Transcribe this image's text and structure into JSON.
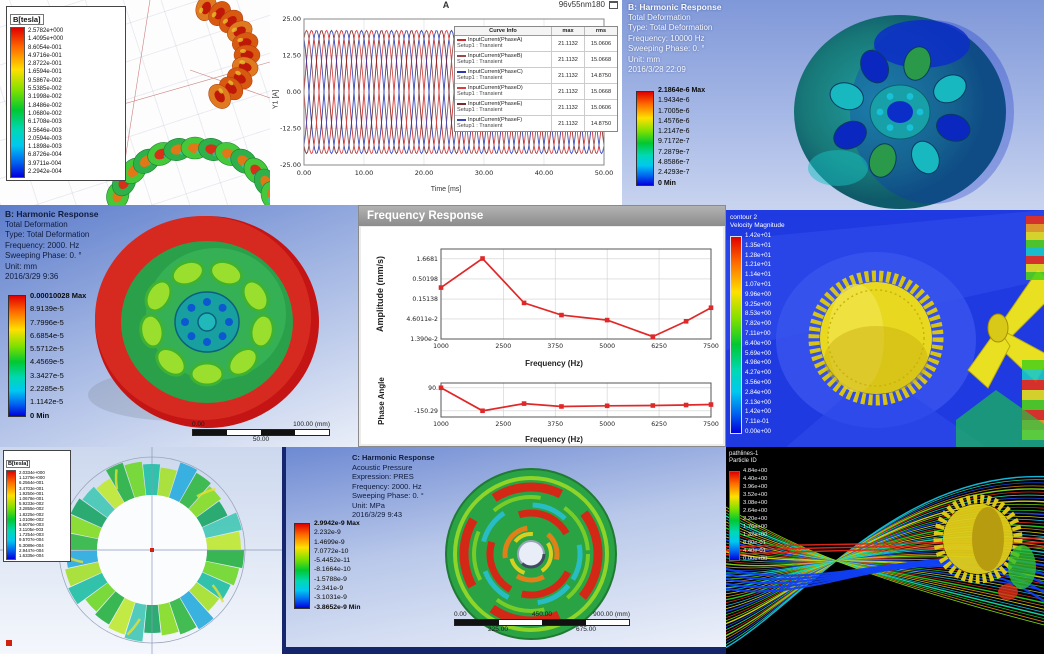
{
  "tl": {
    "legend_title": "B[tesla]",
    "legend_values": [
      "2.5782e+000",
      "1.4095e+000",
      "8.6054e-001",
      "4.9716e-001",
      "2.8722e-001",
      "1.6594e-001",
      "9.5867e-002",
      "5.5385e-002",
      "3.1998e-002",
      "1.8486e-002",
      "1.0680e-002",
      "6.1708e-003",
      "3.5646e-003",
      "2.0594e-003",
      "1.1898e-003",
      "6.8726e-004",
      "3.9711e-004",
      "2.2942e-004"
    ]
  },
  "tm": {
    "title": "A",
    "corner_label": "96v55nm180",
    "xlabel": "Time [ms]",
    "ylabel": "Y1 [A]",
    "table": {
      "header": [
        "Curve Info",
        "max",
        "rms"
      ],
      "rows": [
        {
          "name": "InputCurrent(PhaseA)",
          "setup": "Setup1 : Transient",
          "max": "21.1132",
          "rms": "15.0606",
          "color": "#cc2a2a"
        },
        {
          "name": "InputCurrent(PhaseB)",
          "setup": "Setup1 : Transient",
          "max": "21.1132",
          "rms": "15.0668",
          "color": "#9a4a4a"
        },
        {
          "name": "InputCurrent(PhaseC)",
          "setup": "Setup1 : Transient",
          "max": "21.1132",
          "rms": "14.8750",
          "color": "#2a3aa8"
        },
        {
          "name": "InputCurrent(PhaseD)",
          "setup": "Setup1 : Transient",
          "max": "21.1132",
          "rms": "15.0668",
          "color": "#d84040"
        },
        {
          "name": "InputCurrent(PhaseE)",
          "setup": "Setup1 : Transient",
          "max": "21.1132",
          "rms": "15.0606",
          "color": "#7a2a2a"
        },
        {
          "name": "InputCurrent(PhaseF)",
          "setup": "Setup1 : Transient",
          "max": "21.1132",
          "rms": "14.8750",
          "color": "#3a4ab8"
        }
      ]
    }
  },
  "tr": {
    "info_lines": [
      "B: Harmonic Response",
      "Total Deformation",
      "Type: Total Deformation",
      "Frequency: 10000 Hz",
      "Sweeping Phase: 0. °",
      "Unit: mm",
      "2016/3/28 22:09"
    ],
    "legend_values": [
      "2.1864e-6 Max",
      "1.9434e-6",
      "1.7005e-6",
      "1.4576e-6",
      "1.2147e-6",
      "9.7172e-7",
      "7.2879e-7",
      "4.8586e-7",
      "2.4293e-7",
      "0 Min"
    ]
  },
  "ml": {
    "info_lines": [
      "B: Harmonic Response",
      "Total Deformation",
      "Type: Total Deformation",
      "Frequency: 2000. Hz",
      "Sweeping Phase: 0. °",
      "Unit: mm",
      "2016/3/29 9:36"
    ],
    "legend_values": [
      "0.00010028 Max",
      "8.9139e-5",
      "7.7996e-5",
      "6.6854e-5",
      "5.5712e-5",
      "4.4569e-5",
      "3.3427e-5",
      "2.2285e-5",
      "1.1142e-5",
      "0 Min"
    ],
    "scale": {
      "left": "0.00",
      "right": "100.00 (mm)",
      "mid": "50.00"
    }
  },
  "mm": {
    "window_title": "Frequency Response",
    "amp_ylabel": "Amplitude (mm/s)",
    "phase_ylabel": "Phase Angle",
    "xlabel": "Frequency (Hz)"
  },
  "mr": {
    "legend_title_lines": [
      "contour 2",
      "Velocity Magnitude"
    ],
    "legend_values": [
      "1.42e+01",
      "1.35e+01",
      "1.28e+01",
      "1.21e+01",
      "1.14e+01",
      "1.07e+01",
      "9.96e+00",
      "9.25e+00",
      "8.53e+00",
      "7.82e+00",
      "7.11e+00",
      "6.40e+00",
      "5.69e+00",
      "4.98e+00",
      "4.27e+00",
      "3.56e+00",
      "2.84e+00",
      "2.13e+00",
      "1.42e+00",
      "7.11e-01",
      "0.00e+00"
    ]
  },
  "bl": {
    "legend_title": "B[tesla]",
    "legend_values": [
      "2.0334e+000",
      "1.1279e+000",
      "6.2564e-001",
      "3.4703e-001",
      "1.9250e-001",
      "1.0678e-001",
      "5.9233e-002",
      "3.2855e-002",
      "1.8225e-002",
      "1.0109e-002",
      "5.6076e-003",
      "3.1105e-003",
      "1.7254e-003",
      "9.5707e-004",
      "5.3089e-004",
      "2.9447e-004",
      "1.6335e-004"
    ]
  },
  "bm": {
    "info_lines": [
      "C: Harmonic Response",
      "Acoustic Pressure",
      "Expression: PRES",
      "Frequency: 2000. Hz",
      "Sweeping Phase: 0. °",
      "Unit: MPa",
      "2016/3/29 9:43"
    ],
    "legend_values": [
      "2.9942e-9 Max",
      "2.232e-9",
      "1.4699e-9",
      "7.0772e-10",
      "-5.4452e-11",
      "-8.1664e-10",
      "-1.5788e-9",
      "-2.341e-9",
      "-3.1031e-9",
      "-3.8652e-9 Min"
    ],
    "scale": {
      "t0": "0.00",
      "t1": "450.00",
      "t2": "900.00 (mm)",
      "b0": "225.00",
      "b1": "675.00"
    }
  },
  "br": {
    "legend_title_lines": [
      "pathlines-1",
      "Particle ID"
    ],
    "legend_values": [
      "4.84e+00",
      "4.40e+00",
      "3.96e+00",
      "3.52e+00",
      "3.08e+00",
      "2.64e+00",
      "2.20e+00",
      "1.76e+00",
      "1.32e+00",
      "8.80e-01",
      "4.40e-01",
      "0.00e+00"
    ]
  },
  "chart_data": [
    {
      "type": "line",
      "title": "A",
      "corner_label": "96v55nm180",
      "xlabel": "Time [ms]",
      "ylabel": "Y1 [A]",
      "xlim": [
        0,
        50
      ],
      "ylim": [
        -25,
        25
      ],
      "xticks": [
        0,
        10,
        20,
        30,
        40,
        50
      ],
      "yticks": [
        25,
        12.5,
        0,
        -12.5,
        -25
      ],
      "series": [
        {
          "name": "InputCurrent(PhaseA)",
          "amplitude": 21.1132,
          "period_ms": 5,
          "phase_deg": 0,
          "color": "#cc2a2a",
          "max": 21.1132,
          "rms": 15.0606
        },
        {
          "name": "InputCurrent(PhaseB)",
          "amplitude": 21.1132,
          "period_ms": 5,
          "phase_deg": 60,
          "color": "#9a4a4a",
          "max": 21.1132,
          "rms": 15.0668
        },
        {
          "name": "InputCurrent(PhaseC)",
          "amplitude": 21.1132,
          "period_ms": 5,
          "phase_deg": 120,
          "color": "#2a3aa8",
          "max": 21.1132,
          "rms": 14.875
        },
        {
          "name": "InputCurrent(PhaseD)",
          "amplitude": 21.1132,
          "period_ms": 5,
          "phase_deg": 180,
          "color": "#d84040",
          "max": 21.1132,
          "rms": 15.0668
        },
        {
          "name": "InputCurrent(PhaseE)",
          "amplitude": 21.1132,
          "period_ms": 5,
          "phase_deg": 240,
          "color": "#7a2a2a",
          "max": 21.1132,
          "rms": 15.0606
        },
        {
          "name": "InputCurrent(PhaseF)",
          "amplitude": 21.1132,
          "period_ms": 5,
          "phase_deg": 300,
          "color": "#3a4ab8",
          "max": 21.1132,
          "rms": 14.875
        }
      ]
    },
    {
      "type": "line",
      "name": "Amplitude vs Frequency",
      "x": [
        1000,
        2000,
        3000,
        3900,
        5000,
        6100,
        6900,
        7500
      ],
      "y": [
        0.3,
        1.7,
        0.12,
        0.058,
        0.043,
        0.016,
        0.04,
        0.09
      ],
      "yscale": "log",
      "ylog_range": [
        3.0,
        0.0139
      ],
      "yticks": [
        1.6681,
        0.50198,
        0.15138,
        0.046011,
        0.0139
      ],
      "ytick_labels": [
        "1.6681",
        "0.50198",
        "0.15138",
        "4.6011e-2",
        "1.390e-2"
      ],
      "xlim": [
        1000,
        7500
      ],
      "xticks": [
        1000,
        2500,
        3750,
        5000,
        6250,
        7500
      ],
      "xlabel": "Frequency (Hz)",
      "ylabel": "Amplitude (mm/s)",
      "color": "#e02828"
    },
    {
      "type": "line",
      "name": "Phase Angle vs Frequency",
      "x": [
        1000,
        2000,
        3000,
        3900,
        5000,
        6100,
        6900,
        7500
      ],
      "y": [
        90,
        -150,
        -75,
        -105,
        -98,
        -95,
        -90,
        -85
      ],
      "ylim": [
        140,
        -215
      ],
      "yticks": [
        90,
        -150.29
      ],
      "ytick_labels": [
        "90.",
        "-150.29"
      ],
      "xlim": [
        1000,
        7500
      ],
      "xticks": [
        1000,
        2500,
        3750,
        5000,
        6250,
        7500
      ],
      "xlabel": "Frequency (Hz)",
      "ylabel": "Phase Angle",
      "color": "#e02828"
    }
  ]
}
